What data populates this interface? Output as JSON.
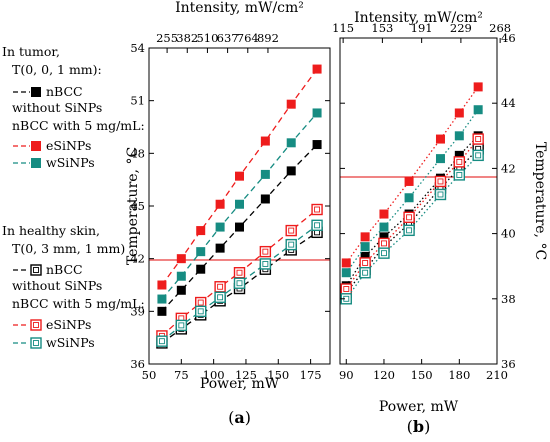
{
  "legend": {
    "tumor_header": "In tumor,",
    "tumor_point": "T(0, 0, 1 mm):",
    "skin_header": "In healthy skin,",
    "skin_point": "T(0, 3 mm, 1 mm)",
    "nbcc": "nBCC",
    "without1": "without SiNPs",
    "with5": "nBCC with 5 mg/mL:",
    "esinps": "eSiNPs",
    "wsinps": "wSiNPs"
  },
  "colors": {
    "red": "#ee1c1c",
    "teal": "#168c82",
    "black": "#000000",
    "threshold": "#e83a3a"
  },
  "chart_data": [
    {
      "panel": "(a)",
      "type": "scatter",
      "xlabel": "Power, mW",
      "ylabel": "Temperature, °C",
      "top_axis_label": "Intensity, mW/cm²",
      "xlim": [
        50,
        190
      ],
      "ylim": [
        36,
        54
      ],
      "x_ticks": [
        "50",
        "75",
        "100",
        "125",
        "150",
        "175"
      ],
      "y_ticks": [
        "36",
        "39",
        "42",
        "45",
        "48",
        "51",
        "54"
      ],
      "top_ticks": [
        "255",
        "382",
        "510",
        "637",
        "764",
        "892"
      ],
      "threshold": 42,
      "series": [
        {
          "name": "nBCC",
          "group": "tumor",
          "color": "black",
          "filled": true,
          "line": "dashed",
          "x": [
            60,
            75,
            90,
            105,
            120,
            140,
            160,
            180
          ],
          "y": [
            39.0,
            40.2,
            41.4,
            42.6,
            43.8,
            45.4,
            47.0,
            48.5
          ]
        },
        {
          "name": "eSiNPs",
          "group": "tumor",
          "color": "red",
          "filled": true,
          "line": "dashed",
          "x": [
            60,
            75,
            90,
            105,
            120,
            140,
            160,
            180
          ],
          "y": [
            40.5,
            42.0,
            43.6,
            45.1,
            46.7,
            48.7,
            50.8,
            52.8
          ]
        },
        {
          "name": "wSiNPs",
          "group": "tumor",
          "color": "teal",
          "filled": true,
          "line": "dashed",
          "x": [
            60,
            75,
            90,
            105,
            120,
            140,
            160,
            180
          ],
          "y": [
            39.7,
            41.0,
            42.4,
            43.8,
            45.1,
            46.8,
            48.6,
            50.3
          ]
        },
        {
          "name": "nBCC",
          "group": "skin",
          "color": "black",
          "filled": false,
          "line": "dashed",
          "x": [
            60,
            75,
            90,
            105,
            120,
            140,
            160,
            180
          ],
          "y": [
            37.2,
            38.0,
            38.8,
            39.6,
            40.3,
            41.4,
            42.5,
            43.5
          ]
        },
        {
          "name": "eSiNPs",
          "group": "skin",
          "color": "red",
          "filled": false,
          "line": "dashed",
          "x": [
            60,
            75,
            90,
            105,
            120,
            140,
            160,
            180
          ],
          "y": [
            37.6,
            38.6,
            39.5,
            40.4,
            41.2,
            42.4,
            43.6,
            44.8
          ]
        },
        {
          "name": "wSiNPs",
          "group": "skin",
          "color": "teal",
          "filled": false,
          "line": "dashed",
          "x": [
            60,
            75,
            90,
            105,
            120,
            140,
            160,
            180
          ],
          "y": [
            37.3,
            38.2,
            39.0,
            39.8,
            40.6,
            41.7,
            42.8,
            43.9
          ]
        }
      ]
    },
    {
      "panel": "(b)",
      "type": "scatter",
      "xlabel": "Power, mW",
      "ylabel": "Temperature, °C",
      "top_axis_label": "Intensity, mW/cm²",
      "xlim": [
        85,
        210
      ],
      "ylim": [
        36,
        46
      ],
      "x_ticks": [
        "90",
        "120",
        "150",
        "180",
        "210"
      ],
      "y_ticks": [
        "36",
        "38",
        "40",
        "42",
        "44",
        "46"
      ],
      "top_ticks": [
        "115",
        "153",
        "191",
        "229",
        "268"
      ],
      "threshold": 42,
      "series": [
        {
          "name": "nBCC",
          "group": "tumor",
          "color": "black",
          "filled": true,
          "line": "dotted",
          "x": [
            90,
            105,
            120,
            140,
            165,
            180,
            195
          ],
          "y": [
            38.4,
            39.3,
            39.9,
            40.6,
            41.7,
            42.4,
            43.0
          ]
        },
        {
          "name": "eSiNPs",
          "group": "tumor",
          "color": "red",
          "filled": true,
          "line": "dotted",
          "x": [
            90,
            105,
            120,
            140,
            165,
            180,
            195
          ],
          "y": [
            39.1,
            39.9,
            40.6,
            41.6,
            42.9,
            43.7,
            44.5
          ]
        },
        {
          "name": "wSiNPs",
          "group": "tumor",
          "color": "teal",
          "filled": true,
          "line": "dotted",
          "x": [
            90,
            105,
            120,
            140,
            165,
            180,
            195
          ],
          "y": [
            38.8,
            39.6,
            40.2,
            41.1,
            42.3,
            43.0,
            43.8
          ]
        },
        {
          "name": "nBCC",
          "group": "skin",
          "color": "black",
          "filled": false,
          "line": "dotted",
          "x": [
            90,
            105,
            120,
            140,
            165,
            180,
            195
          ],
          "y": [
            38.2,
            38.9,
            39.6,
            40.3,
            41.4,
            42.0,
            42.6
          ]
        },
        {
          "name": "eSiNPs",
          "group": "skin",
          "color": "red",
          "filled": false,
          "line": "dotted",
          "x": [
            90,
            105,
            120,
            140,
            165,
            180,
            195
          ],
          "y": [
            38.3,
            39.1,
            39.7,
            40.5,
            41.6,
            42.2,
            42.9
          ]
        },
        {
          "name": "wSiNPs",
          "group": "skin",
          "color": "teal",
          "filled": false,
          "line": "dotted",
          "x": [
            90,
            105,
            120,
            140,
            165,
            180,
            195
          ],
          "y": [
            38.0,
            38.8,
            39.4,
            40.1,
            41.2,
            41.8,
            42.4
          ]
        }
      ]
    }
  ]
}
